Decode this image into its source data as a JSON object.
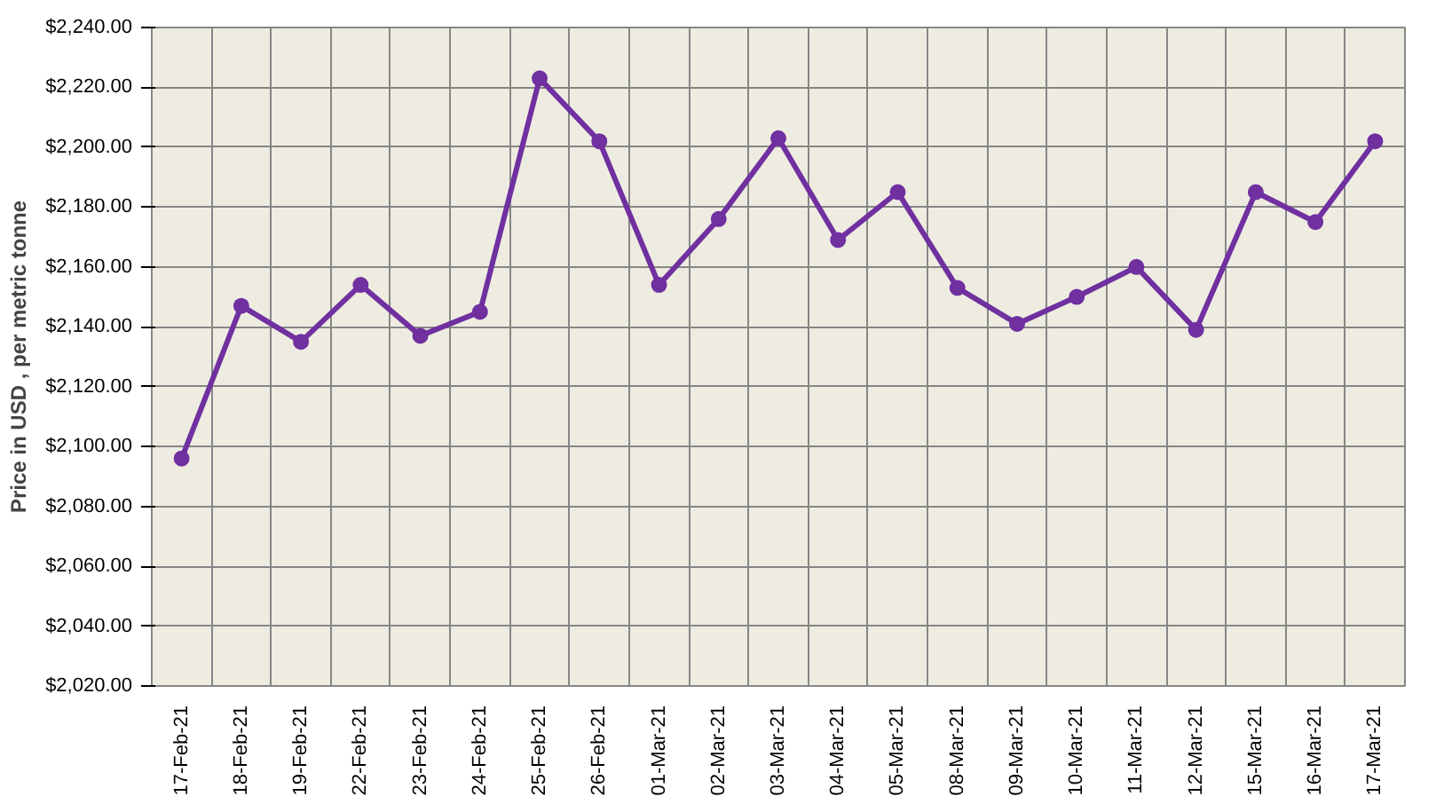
{
  "chart_data": {
    "type": "line",
    "ylabel": "Price in USD , per metric tonne",
    "categories": [
      "17-Feb-21",
      "18-Feb-21",
      "19-Feb-21",
      "22-Feb-21",
      "23-Feb-21",
      "24-Feb-21",
      "25-Feb-21",
      "26-Feb-21",
      "01-Mar-21",
      "02-Mar-21",
      "03-Mar-21",
      "04-Mar-21",
      "05-Mar-21",
      "08-Mar-21",
      "09-Mar-21",
      "10-Mar-21",
      "11-Mar-21",
      "12-Mar-21",
      "15-Mar-21",
      "16-Mar-21",
      "17-Mar-21"
    ],
    "series": [
      {
        "color": "#7030a0",
        "values": [
          2096,
          2147,
          2135,
          2154,
          2137,
          2145,
          2223,
          2202,
          2154,
          2176,
          2203,
          2169,
          2185,
          2153,
          2141,
          2150,
          2160,
          2139,
          2185,
          2175,
          2202
        ]
      }
    ],
    "ylim": [
      2020,
      2240
    ],
    "yticks": [
      {
        "value": 2020,
        "label": "$2,020.00"
      },
      {
        "value": 2040,
        "label": "$2,040.00"
      },
      {
        "value": 2060,
        "label": "$2,060.00"
      },
      {
        "value": 2080,
        "label": "$2,080.00"
      },
      {
        "value": 2100,
        "label": "$2,100.00"
      },
      {
        "value": 2120,
        "label": "$2,120.00"
      },
      {
        "value": 2140,
        "label": "$2,140.00"
      },
      {
        "value": 2160,
        "label": "$2,160.00"
      },
      {
        "value": 2180,
        "label": "$2,180.00"
      },
      {
        "value": 2200,
        "label": "$2,200.00"
      },
      {
        "value": 2220,
        "label": "$2,220.00"
      },
      {
        "value": 2240,
        "label": "$2,240.00"
      }
    ],
    "grid": true,
    "marker": "circle",
    "line_style": "solid"
  }
}
